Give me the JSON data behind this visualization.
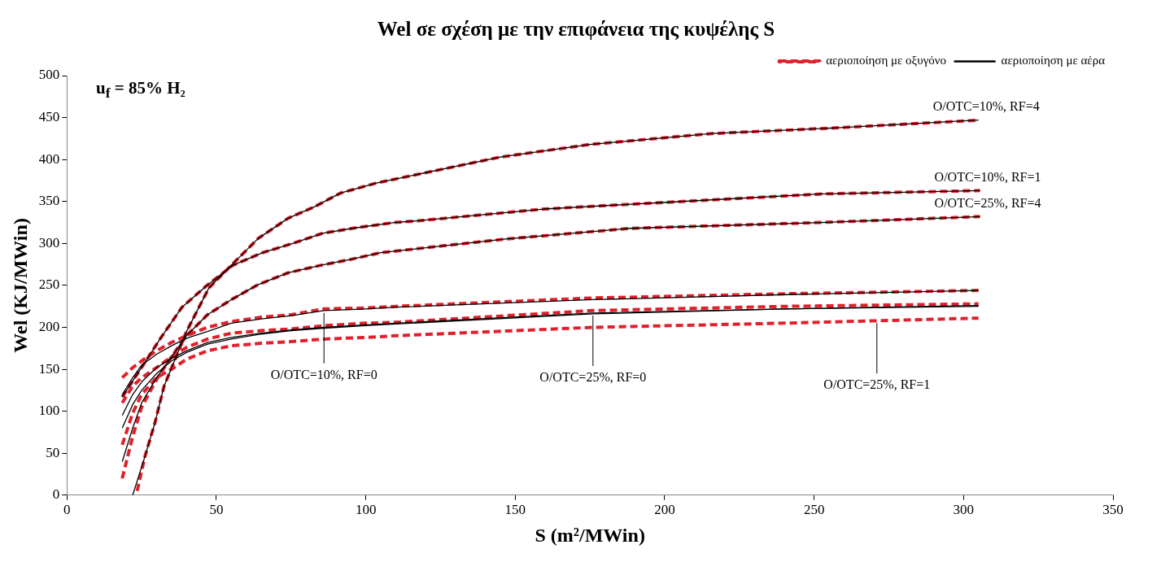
{
  "chart_data": {
    "type": "line",
    "title": "Wel σε σχέση με την επιφάνεια της κυψέλης S",
    "subtitle": "u$_{f}$ = 85% H₂",
    "xlabel": "S (m²/MWin)",
    "ylabel": "Wel (KJ/MWin)",
    "xlim": [
      0,
      350
    ],
    "xticks": [
      0,
      50,
      100,
      150,
      200,
      250,
      300,
      350
    ],
    "ylim": [
      0,
      500
    ],
    "yticks": [
      0,
      50,
      100,
      150,
      200,
      250,
      300,
      350,
      400,
      450,
      500
    ],
    "legend": "top right",
    "marker": "none",
    "series": [
      {
        "name": "αεριοποίηση με αέρα",
        "color": "#000000",
        "line_style": "solid",
        "x": [
          22,
          26,
          29.5,
          32.5,
          40,
          47.5,
          55,
          64,
          74,
          83,
          91.5,
          103.5,
          145,
          175,
          216,
          259,
          305
        ],
        "values": [
          0,
          45,
          87,
          130,
          195,
          247,
          274,
          306,
          330,
          344,
          360,
          372,
          403,
          418,
          431,
          438,
          447
        ]
      },
      {
        "color": "#000000",
        "line_style": "solid",
        "x": [
          18.5,
          25.5,
          31.5,
          38.5,
          46.5,
          55.5,
          65.5,
          75.5,
          85.5,
          95.5,
          109.5,
          117.5,
          159.5,
          200.5,
          252.5,
          305.5
        ],
        "values": [
          117,
          155,
          188,
          224,
          249,
          274,
          289,
          300,
          312,
          318,
          325,
          327,
          341,
          349,
          359,
          363
        ]
      },
      {
        "color": "#000000",
        "line_style": "solid",
        "x": [
          18.5,
          22,
          25,
          30,
          35,
          40,
          47,
          55,
          64,
          74,
          85,
          95,
          105,
          146,
          188.5,
          252.5,
          305.5
        ],
        "values": [
          40,
          80,
          110,
          140,
          165,
          190,
          215,
          233,
          251,
          265,
          274,
          281,
          289,
          305,
          318,
          325,
          332
        ]
      },
      {
        "color": "#000000",
        "line_style": "solid",
        "x": [
          18.5,
          22,
          25,
          30,
          35,
          40,
          47,
          55,
          65,
          75,
          86,
          100,
          110,
          176,
          240,
          305
        ],
        "values": [
          120,
          140,
          155,
          168,
          178,
          187,
          195,
          205,
          210,
          214,
          220,
          222,
          224,
          233,
          239,
          244
        ]
      },
      {
        "color": "#000000",
        "line_style": "solid",
        "x": [
          18.5,
          22,
          25,
          30,
          35,
          40,
          47,
          55,
          65,
          75,
          86,
          100,
          110,
          176,
          240,
          305
        ],
        "values": [
          95,
          120,
          135,
          152,
          163,
          172,
          182,
          188,
          193,
          197,
          200,
          203,
          205,
          217,
          222,
          226
        ]
      },
      {
        "color": "#000000",
        "line_style": "solid",
        "x": [
          18.5,
          22,
          25,
          30,
          35,
          40,
          47,
          55,
          65,
          75,
          86,
          100,
          110,
          176,
          240,
          305
        ],
        "values": [
          80,
          108,
          125,
          145,
          160,
          170,
          180,
          186,
          192,
          196,
          199,
          202,
          204,
          216,
          222,
          225
        ]
      },
      {
        "name": "αεριοποίηση με οξυγόνο",
        "color": "#e0202c",
        "line_style": "dashed",
        "x": [
          23.5,
          26,
          29.5,
          32.5,
          40,
          47.5,
          55,
          64,
          74,
          83,
          91.5,
          103.5,
          145,
          175,
          216,
          259,
          305
        ],
        "values": [
          5,
          45,
          87,
          130,
          195,
          247,
          274,
          306,
          330,
          344,
          360,
          372,
          403,
          418,
          431,
          438,
          447
        ]
      },
      {
        "color": "#e0202c",
        "line_style": "dashed",
        "x": [
          18.5,
          25.5,
          31.5,
          38.5,
          46.5,
          55.5,
          65.5,
          75.5,
          85.5,
          95.5,
          109.5,
          117.5,
          159.5,
          200.5,
          252.5,
          305.5
        ],
        "values": [
          117,
          155,
          188,
          224,
          249,
          274,
          289,
          300,
          312,
          318,
          325,
          327,
          341,
          349,
          359,
          363
        ]
      },
      {
        "color": "#e0202c",
        "line_style": "dashed",
        "x": [
          18.5,
          22,
          25,
          30,
          35,
          40,
          47,
          55,
          64,
          74,
          85,
          95,
          105,
          146,
          188.5,
          252.5,
          305.5
        ],
        "values": [
          20,
          70,
          105,
          138,
          165,
          190,
          215,
          233,
          251,
          265,
          274,
          281,
          289,
          305,
          318,
          325,
          332
        ]
      },
      {
        "color": "#e0202c",
        "line_style": "dashed",
        "x": [
          18.5,
          22,
          25,
          30,
          35,
          40,
          47,
          55,
          65,
          75,
          86,
          100,
          110,
          176,
          240,
          305
        ],
        "values": [
          140,
          152,
          160,
          172,
          182,
          190,
          200,
          207,
          212,
          215,
          222,
          223,
          225,
          235,
          240,
          244
        ]
      },
      {
        "color": "#e0202c",
        "line_style": "dashed",
        "x": [
          18.5,
          22,
          25,
          30,
          35,
          40,
          47,
          55,
          65,
          75,
          86,
          100,
          110,
          176,
          240,
          305
        ],
        "values": [
          110,
          130,
          140,
          152,
          165,
          176,
          186,
          193,
          196,
          198,
          202,
          205,
          206,
          220,
          225,
          228
        ]
      },
      {
        "color": "#e0202c",
        "line_style": "dashed",
        "x": [
          18.5,
          22,
          25,
          30,
          35,
          40,
          47,
          55,
          65,
          75,
          86,
          100,
          110,
          176,
          240,
          305
        ],
        "values": [
          60,
          98,
          120,
          140,
          150,
          162,
          172,
          178,
          181,
          183,
          186,
          188,
          190,
          200,
          205,
          211
        ]
      }
    ],
    "annotations": [
      {
        "text": "O/OTC=10%, RF=4",
        "x": 305,
        "y": 447
      },
      {
        "text": "O/OTC=10%, RF=1",
        "x": 305.5,
        "y": 363
      },
      {
        "text": "O/OTC=25%, RF=4",
        "x": 305.5,
        "y": 332
      },
      {
        "text": "O/OTC=10%, RF=0",
        "x": 86,
        "y": 220
      },
      {
        "text": "O/OTC=25%, RF=0",
        "x": 176,
        "y": 217
      },
      {
        "text": "O/OTC=25%, RF=1",
        "x": 271,
        "y": 208
      }
    ]
  }
}
